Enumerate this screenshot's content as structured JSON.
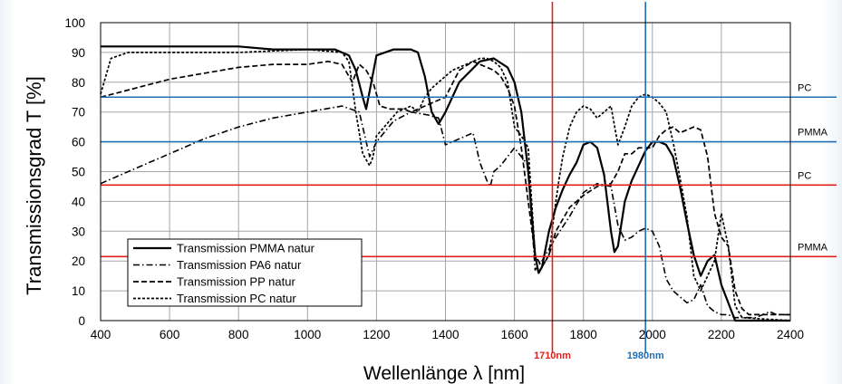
{
  "chart_data": {
    "type": "line",
    "xlabel": "Wellenlänge λ [nm]",
    "ylabel": "Transmissionsgrad T [%]",
    "xlim": [
      400,
      2400
    ],
    "ylim": [
      0,
      100
    ],
    "x_ticks": [
      400,
      600,
      800,
      1000,
      1200,
      1400,
      1600,
      1800,
      2000,
      2200,
      2400
    ],
    "y_ticks": [
      0,
      10,
      20,
      30,
      40,
      50,
      60,
      70,
      80,
      90,
      100
    ],
    "grid": true,
    "legend_position": "bottom-left",
    "series": [
      {
        "name": "Transmission PMMA natur",
        "style": "solid",
        "x": [
          400,
          450,
          600,
          800,
          900,
          1000,
          1080,
          1120,
          1140,
          1160,
          1170,
          1185,
          1200,
          1250,
          1300,
          1320,
          1340,
          1360,
          1380,
          1400,
          1440,
          1500,
          1540,
          1580,
          1600,
          1620,
          1640,
          1660,
          1670,
          1680,
          1700,
          1720,
          1740,
          1760,
          1780,
          1800,
          1820,
          1840,
          1860,
          1880,
          1890,
          1900,
          1920,
          1940,
          1960,
          1980,
          2000,
          2020,
          2040,
          2060,
          2080,
          2100,
          2120,
          2140,
          2160,
          2180,
          2200,
          2240,
          2280,
          2320,
          2400
        ],
        "values": [
          92,
          92,
          92,
          92,
          91,
          91,
          91,
          89,
          84,
          75,
          71,
          80,
          89,
          91,
          91,
          90,
          82,
          70,
          66,
          70,
          80,
          87,
          88,
          85,
          80,
          70,
          50,
          22,
          16,
          18,
          30,
          38,
          44,
          49,
          53,
          59,
          60,
          58,
          49,
          30,
          23,
          25,
          40,
          47,
          52,
          57,
          60,
          60,
          59,
          55,
          45,
          33,
          22,
          15,
          20,
          22,
          12,
          0,
          0,
          0,
          0
        ]
      },
      {
        "name": "Transmission PA6 natur",
        "style": "dash-dot",
        "x": [
          400,
          500,
          600,
          700,
          800,
          900,
          1000,
          1050,
          1100,
          1150,
          1180,
          1200,
          1250,
          1300,
          1350,
          1380,
          1400,
          1440,
          1480,
          1500,
          1520,
          1530,
          1540,
          1560,
          1580,
          1600,
          1640,
          1660,
          1680,
          1700,
          1720,
          1760,
          1800,
          1840,
          1880,
          1900,
          1920,
          1940,
          1960,
          1980,
          2000,
          2020,
          2040,
          2060,
          2080,
          2100,
          2120,
          2140,
          2160,
          2180,
          2200,
          2220,
          2240,
          2260,
          2280,
          2300,
          2340,
          2360,
          2380,
          2400
        ],
        "values": [
          46,
          51,
          56,
          61,
          65,
          68,
          70,
          71,
          72,
          70,
          55,
          60,
          67,
          70,
          69,
          68,
          59,
          61,
          63,
          53,
          47,
          45,
          50,
          52,
          55,
          58,
          52,
          17,
          20,
          24,
          28,
          35,
          43,
          46,
          45,
          32,
          27,
          28,
          30,
          31,
          30,
          25,
          14,
          10,
          8,
          6,
          7,
          12,
          5,
          3,
          2,
          2,
          1,
          1,
          1,
          1,
          3,
          2,
          2,
          2
        ]
      },
      {
        "name": "Transmission PP natur",
        "style": "dashed",
        "x": [
          400,
          500,
          600,
          700,
          800,
          900,
          1000,
          1060,
          1100,
          1130,
          1150,
          1170,
          1190,
          1210,
          1240,
          1280,
          1300,
          1340,
          1380,
          1400,
          1440,
          1480,
          1500,
          1540,
          1560,
          1580,
          1600,
          1620,
          1640,
          1660,
          1680,
          1700,
          1720,
          1760,
          1800,
          1840,
          1880,
          1900,
          1920,
          1940,
          1960,
          1980,
          2000,
          2020,
          2040,
          2060,
          2080,
          2100,
          2120,
          2140,
          2160,
          2180,
          2200,
          2220,
          2240,
          2260,
          2280,
          2400
        ],
        "values": [
          75,
          78,
          81,
          83,
          85,
          86,
          86,
          87,
          86,
          80,
          86,
          84,
          80,
          72,
          71,
          71,
          70,
          72,
          74,
          75,
          84,
          87,
          86,
          84,
          82,
          78,
          72,
          58,
          40,
          22,
          18,
          22,
          30,
          38,
          42,
          45,
          46,
          50,
          56,
          56,
          58,
          58,
          58,
          62,
          64,
          65,
          63,
          64,
          65,
          64,
          55,
          36,
          28,
          25,
          10,
          4,
          2,
          2
        ]
      },
      {
        "name": "Transmission PC natur",
        "style": "dotted",
        "x": [
          400,
          430,
          480,
          600,
          800,
          1000,
          1100,
          1120,
          1140,
          1160,
          1180,
          1190,
          1200,
          1230,
          1260,
          1300,
          1320,
          1340,
          1360,
          1380,
          1400,
          1420,
          1440,
          1460,
          1480,
          1500,
          1520,
          1540,
          1560,
          1580,
          1600,
          1620,
          1640,
          1660,
          1670,
          1680,
          1700,
          1720,
          1730,
          1740,
          1760,
          1780,
          1800,
          1820,
          1840,
          1860,
          1880,
          1900,
          1920,
          1940,
          1960,
          1980,
          2000,
          2020,
          2040,
          2060,
          2080,
          2100,
          2110,
          2120,
          2140,
          2160,
          2180,
          2200,
          2220,
          2240,
          2260,
          2400
        ],
        "values": [
          76,
          88,
          90,
          90,
          90,
          91,
          90,
          87,
          70,
          56,
          52,
          55,
          62,
          66,
          70,
          72,
          70,
          75,
          78,
          80,
          82,
          84,
          85,
          86,
          87,
          88,
          88,
          87,
          85,
          80,
          65,
          62,
          58,
          22,
          16,
          18,
          22,
          40,
          48,
          55,
          65,
          70,
          72,
          71,
          68,
          70,
          72,
          59,
          65,
          72,
          75,
          76,
          75,
          73,
          70,
          60,
          48,
          35,
          25,
          15,
          10,
          15,
          20,
          36,
          25,
          5,
          1,
          0
        ]
      }
    ]
  },
  "overlay": {
    "horizontal_lines": [
      {
        "label": "PC",
        "value": 75,
        "color": "#1f6fb5"
      },
      {
        "label": "PMMA",
        "value": 60,
        "color": "#1f6fb5"
      },
      {
        "label": "PC",
        "value": 45.5,
        "color": "#e0201d"
      },
      {
        "label": "PMMA",
        "value": 21.5,
        "color": "#e0201d"
      }
    ],
    "vertical_lines": [
      {
        "label": "1710nm",
        "value": 1710,
        "color": "#e0201d"
      },
      {
        "label": "1980nm",
        "value": 1980,
        "color": "#1f6fb5"
      }
    ]
  }
}
